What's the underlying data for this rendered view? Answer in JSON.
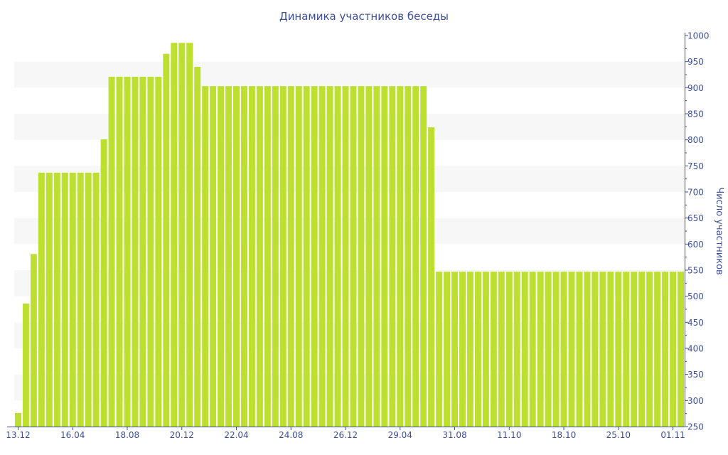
{
  "chart_data": {
    "type": "bar",
    "title": "Динамика участников беседы",
    "ylabel": "Число участников",
    "xlabel": "",
    "ylim": [
      250,
      1000
    ],
    "yticks": [
      250,
      300,
      350,
      400,
      450,
      500,
      550,
      600,
      650,
      700,
      750,
      800,
      850,
      900,
      950,
      1000
    ],
    "y_axis_position": "right",
    "grid": "alternating horizontal bands",
    "x_tick_labels": [
      "13.12",
      "16.04",
      "18.08",
      "20.12",
      "22.04",
      "24.08",
      "26.12",
      "29.04",
      "31.08",
      "11.10",
      "18.10",
      "25.10",
      "01.11"
    ],
    "x_tick_every_n_bars": 7,
    "bar_color": "#bde030",
    "axis_color": "#3e4f9a",
    "values": [
      276,
      486,
      581,
      737,
      737,
      737,
      737,
      737,
      737,
      737,
      737,
      801,
      921,
      921,
      921,
      921,
      921,
      921,
      921,
      965,
      986,
      986,
      986,
      940,
      903,
      903,
      903,
      903,
      903,
      903,
      903,
      903,
      903,
      903,
      903,
      903,
      903,
      903,
      903,
      903,
      903,
      903,
      903,
      903,
      903,
      903,
      903,
      903,
      903,
      903,
      903,
      903,
      903,
      824,
      547,
      547,
      547,
      547,
      547,
      547,
      547,
      547,
      547,
      547,
      547,
      547,
      547,
      547,
      547,
      547,
      547,
      547,
      547,
      547,
      547,
      547,
      547,
      547,
      547,
      547,
      547,
      547,
      547,
      547,
      547,
      547
    ]
  }
}
